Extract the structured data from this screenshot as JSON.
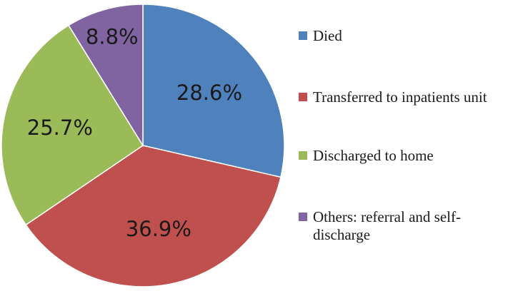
{
  "chart_data": {
    "type": "pie",
    "title": "",
    "categories": [
      "Died",
      "Transferred to inpatients unit",
      "Discharged to home",
      "Others: referral and self-discharge"
    ],
    "values": [
      28.6,
      36.9,
      25.7,
      8.8
    ],
    "labels": [
      "28.6%",
      "36.9%",
      "25.7%",
      "8.8%"
    ],
    "colors": [
      "#4F81BD",
      "#C0504D",
      "#9BBB59",
      "#8064A2"
    ],
    "legend_position": "right",
    "legend": [
      {
        "lines": [
          "Died"
        ]
      },
      {
        "lines": [
          "Transferred to inpatients unit"
        ]
      },
      {
        "lines": [
          "Discharged to home"
        ]
      },
      {
        "lines": [
          "Others: referral and self-",
          "discharge"
        ]
      }
    ]
  }
}
